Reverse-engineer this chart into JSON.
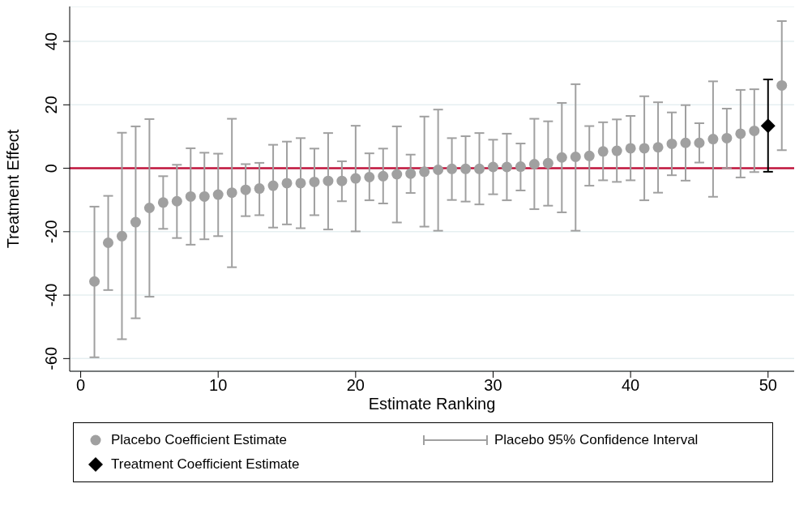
{
  "chart_data": {
    "type": "scatter",
    "xlabel": "Estimate Ranking",
    "ylabel": "Treatment Effect",
    "xlim": [
      -0.8,
      51.9
    ],
    "xticks": [
      0,
      10,
      20,
      30,
      40,
      50
    ],
    "ylim": [
      -64,
      51
    ],
    "yticks": [
      -60,
      -40,
      -20,
      0,
      20,
      40
    ],
    "grid": "y",
    "legend": "bottom",
    "ref_lines": [
      {
        "axis": "y",
        "value": 0,
        "color": "#c0143c"
      }
    ],
    "annotations": [
      "Placebo 95% Confidence Interval"
    ],
    "series": [
      {
        "name": "Placebo Coefficient Estimate",
        "marker": "circle",
        "color": "#a0a0a0",
        "x": [
          1,
          2,
          3,
          4,
          5,
          6,
          7,
          8,
          9,
          10,
          11,
          12,
          13,
          14,
          15,
          16,
          17,
          18,
          19,
          20,
          21,
          22,
          23,
          24,
          25,
          26,
          27,
          28,
          29,
          30,
          31,
          32,
          33,
          34,
          35,
          36,
          37,
          38,
          39,
          40,
          41,
          42,
          43,
          44,
          45,
          46,
          47,
          48,
          49,
          51
        ],
        "values": [
          -35.7,
          -23.5,
          -21.4,
          -17.0,
          -12.5,
          -10.8,
          -10.4,
          -8.9,
          -8.9,
          -8.3,
          -7.7,
          -6.8,
          -6.4,
          -5.5,
          -4.7,
          -4.7,
          -4.3,
          -4.0,
          -4.0,
          -3.2,
          -2.8,
          -2.5,
          -1.9,
          -1.7,
          -1.1,
          -0.5,
          -0.2,
          -0.2,
          -0.2,
          0.4,
          0.4,
          0.5,
          1.3,
          1.6,
          3.4,
          3.6,
          3.9,
          5.3,
          5.5,
          6.3,
          6.3,
          6.6,
          7.7,
          8.0,
          8.0,
          9.2,
          9.5,
          10.9,
          11.8,
          26.1
        ],
        "errors": [
          [
            -59.6,
            -12.1
          ],
          [
            -38.4,
            -8.7
          ],
          [
            -53.9,
            11.2
          ],
          [
            -47.3,
            13.2
          ],
          [
            -40.5,
            15.5
          ],
          [
            -19.1,
            -2.5
          ],
          [
            -22.0,
            1.1
          ],
          [
            -24.1,
            6.3
          ],
          [
            -22.4,
            4.9
          ],
          [
            -21.4,
            4.6
          ],
          [
            -31.2,
            15.6
          ],
          [
            -15.1,
            1.3
          ],
          [
            -14.8,
            1.7
          ],
          [
            -18.7,
            7.4
          ],
          [
            -17.7,
            8.4
          ],
          [
            -18.9,
            9.5
          ],
          [
            -14.8,
            6.2
          ],
          [
            -19.3,
            11.1
          ],
          [
            -10.4,
            2.2
          ],
          [
            -19.9,
            13.4
          ],
          [
            -10.1,
            4.7
          ],
          [
            -11.1,
            6.2
          ],
          [
            -17.1,
            13.2
          ],
          [
            -7.8,
            4.3
          ],
          [
            -18.4,
            16.3
          ],
          [
            -19.7,
            18.5
          ],
          [
            -10.0,
            9.5
          ],
          [
            -10.5,
            10.1
          ],
          [
            -11.4,
            11.1
          ],
          [
            -8.2,
            9.0
          ],
          [
            -10.1,
            10.9
          ],
          [
            -7.0,
            7.8
          ],
          [
            -12.9,
            15.6
          ],
          [
            -11.8,
            14.8
          ],
          [
            -13.9,
            20.6
          ],
          [
            -19.7,
            26.5
          ],
          [
            -5.5,
            13.3
          ],
          [
            -3.8,
            14.5
          ],
          [
            -4.3,
            15.4
          ],
          [
            -3.8,
            16.5
          ],
          [
            -10.1,
            22.7
          ],
          [
            -7.7,
            20.8
          ],
          [
            -2.2,
            17.6
          ],
          [
            -3.9,
            19.9
          ],
          [
            1.8,
            14.2
          ],
          [
            -9.0,
            27.4
          ],
          [
            0.0,
            18.8
          ],
          [
            -2.9,
            24.7
          ],
          [
            -1.2,
            24.9
          ],
          [
            5.7,
            46.4
          ]
        ]
      },
      {
        "name": "Treatment Coefficient Estimate",
        "marker": "diamond",
        "color": "#000000",
        "x": [
          50
        ],
        "values": [
          13.4
        ],
        "errors": [
          [
            -1.1,
            28.0
          ]
        ]
      }
    ]
  }
}
